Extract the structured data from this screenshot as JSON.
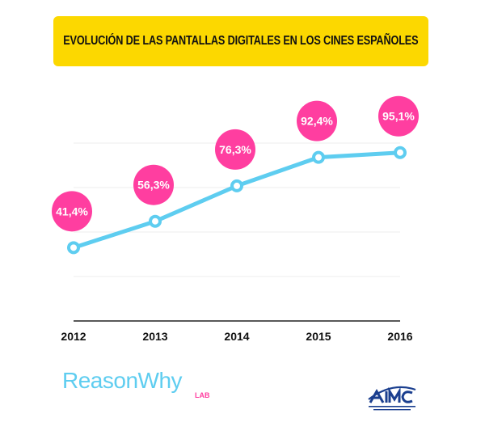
{
  "header": {
    "title": "EVOLUCIÓN DE LAS PANTALLAS DIGITALES EN LOS CINES ESPAÑOLES"
  },
  "chart_data": {
    "type": "line",
    "title": "EVOLUCIÓN DE LAS PANTALLAS DIGITALES EN LOS CINES ESPAÑOLES",
    "categories": [
      "2012",
      "2013",
      "2014",
      "2015",
      "2016"
    ],
    "values": [
      41.4,
      56.3,
      76.3,
      92.4,
      95.1
    ],
    "data_labels": [
      "41,4%",
      "56,3%",
      "76,3%",
      "92,4%",
      "95,1%"
    ],
    "xlabel": "",
    "ylabel": "",
    "ylim": [
      0,
      125
    ],
    "grid": true,
    "legend": "none",
    "colors": {
      "line": "#5ecdf0",
      "label_bubble": "#ff3ea0",
      "title_bg": "#fcd800"
    }
  },
  "footer": {
    "brand": "ReasonWhy",
    "brand_sub": "LAB",
    "org_logo_icon": "aimc-logo"
  }
}
